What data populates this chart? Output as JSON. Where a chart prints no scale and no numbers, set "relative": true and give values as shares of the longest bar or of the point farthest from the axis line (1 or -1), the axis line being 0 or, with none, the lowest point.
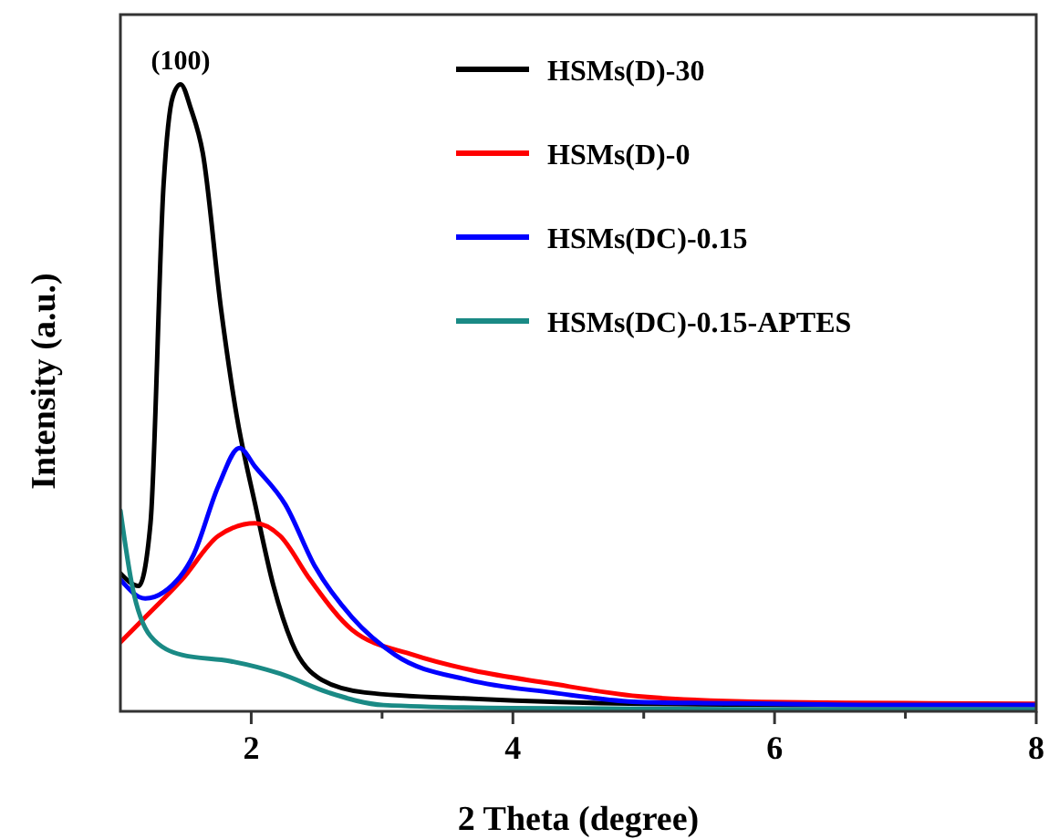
{
  "chart_data": {
    "type": "line",
    "relative": true,
    "xlabel": "2 Theta (degree)",
    "ylabel": "Intensity (a.u.)",
    "xlim": [
      1,
      8
    ],
    "xticks": [
      2,
      {
        "value": 3,
        "label": null
      },
      4,
      {
        "value": 5,
        "label": null
      },
      6,
      {
        "value": 7,
        "label": null
      },
      8
    ],
    "legend": "top right",
    "line_style": "solid",
    "annotations": [
      {
        "text": "(100)",
        "x": 1.46,
        "y": 1.0
      }
    ],
    "series": [
      {
        "name": "HSMs(D)-30",
        "color": "#000000",
        "x": [
          1.0,
          1.14,
          1.23,
          1.33,
          1.4,
          1.46,
          1.54,
          1.63,
          1.77,
          1.89,
          2.03,
          2.17,
          2.31,
          2.54,
          2.87,
          3.7,
          5,
          6.5,
          8
        ],
        "values": [
          0.22,
          0.2,
          0.3,
          0.84,
          0.98,
          1.0,
          0.96,
          0.89,
          0.64,
          0.47,
          0.33,
          0.2,
          0.11,
          0.05,
          0.03,
          0.02,
          0.012,
          0.01,
          0.01
        ]
      },
      {
        "name": "HSMs(D)-0",
        "color": "#ff0000",
        "x": [
          1.0,
          1.19,
          1.47,
          1.75,
          2.03,
          2.22,
          2.45,
          2.77,
          3.24,
          3.7,
          4.27,
          4.96,
          5.9,
          7,
          8
        ],
        "values": [
          0.11,
          0.15,
          0.21,
          0.28,
          0.3,
          0.28,
          0.21,
          0.13,
          0.09,
          0.065,
          0.045,
          0.024,
          0.015,
          0.013,
          0.012
        ]
      },
      {
        "name": "HSMs(DC)-0.15",
        "color": "#0000ff",
        "x": [
          1.0,
          1.19,
          1.33,
          1.56,
          1.75,
          1.91,
          2.03,
          2.26,
          2.49,
          2.77,
          3.1,
          3.66,
          4.3,
          4.96,
          6,
          7,
          8
        ],
        "values": [
          0.21,
          0.18,
          0.19,
          0.25,
          0.36,
          0.42,
          0.39,
          0.33,
          0.23,
          0.15,
          0.09,
          0.05,
          0.03,
          0.015,
          0.012,
          0.01,
          0.01
        ]
      },
      {
        "name": "HSMs(DC)-0.15-APTES",
        "color": "#1a8a85",
        "x": [
          1.0,
          1.09,
          1.23,
          1.47,
          1.84,
          2.22,
          2.59,
          3.01,
          4,
          6,
          8
        ],
        "values": [
          0.32,
          0.2,
          0.12,
          0.09,
          0.08,
          0.06,
          0.03,
          0.01,
          0.005,
          0.003,
          0.003
        ]
      }
    ]
  }
}
